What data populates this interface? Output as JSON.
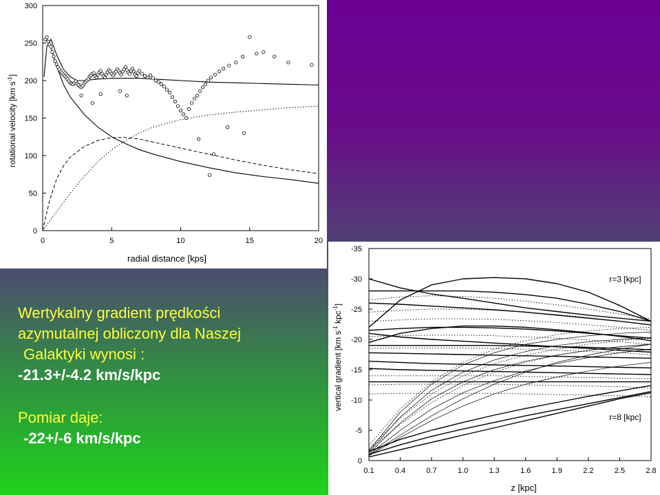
{
  "colors": {
    "background_top": "#6a0094",
    "background_bottom": "#1fd21a",
    "heading_text": "#ffff3a",
    "body_text": "#ffffff"
  },
  "text": {
    "line1": "Wertykalny gradient prędkości",
    "line2": "azymutalnej obliczony dla Naszej",
    "line3": "Galaktyki wynosi :",
    "line4": "-21.3+/-4.2  km/s/kpc",
    "line5": "Pomiar daje:",
    "line6": "-22+/-6  km/s/kpc"
  },
  "chart_data": [
    {
      "type": "scatter",
      "xlabel": "radial distance [kps]",
      "ylabel": "rotational velocity  [km s",
      "ylabel_sup": "-1",
      "ylabel_close": "]",
      "xlim": [
        0,
        20
      ],
      "ylim": [
        0,
        300
      ],
      "xticks": [
        0,
        5,
        10,
        15,
        20
      ],
      "yticks": [
        0,
        50,
        100,
        150,
        200,
        250,
        300
      ],
      "observations": [
        [
          0.2,
          255
        ],
        [
          0.3,
          258
        ],
        [
          0.4,
          252
        ],
        [
          0.5,
          248
        ],
        [
          0.6,
          245
        ],
        [
          0.7,
          238
        ],
        [
          0.8,
          232
        ],
        [
          0.9,
          226
        ],
        [
          1.0,
          222
        ],
        [
          1.1,
          218
        ],
        [
          1.2,
          215
        ],
        [
          1.3,
          212
        ],
        [
          1.4,
          210
        ],
        [
          1.5,
          208
        ],
        [
          1.6,
          206
        ],
        [
          1.7,
          204
        ],
        [
          1.8,
          202
        ],
        [
          1.9,
          199
        ],
        [
          2.0,
          197
        ],
        [
          2.1,
          196
        ],
        [
          2.2,
          195
        ],
        [
          2.3,
          197
        ],
        [
          2.4,
          199
        ],
        [
          2.5,
          196
        ],
        [
          2.6,
          194
        ],
        [
          2.7,
          192
        ],
        [
          2.8,
          191
        ],
        [
          2.9,
          193
        ],
        [
          3.0,
          196
        ],
        [
          3.1,
          198
        ],
        [
          3.2,
          200
        ],
        [
          3.3,
          202
        ],
        [
          3.4,
          205
        ],
        [
          3.5,
          207
        ],
        [
          3.6,
          209
        ],
        [
          3.7,
          210
        ],
        [
          3.8,
          206
        ],
        [
          3.9,
          204
        ],
        [
          4.0,
          208
        ],
        [
          4.1,
          211
        ],
        [
          4.2,
          213
        ],
        [
          4.3,
          209
        ],
        [
          4.4,
          206
        ],
        [
          4.5,
          204
        ],
        [
          4.6,
          208
        ],
        [
          4.7,
          211
        ],
        [
          4.8,
          214
        ],
        [
          4.9,
          212
        ],
        [
          5.0,
          209
        ],
        [
          5.1,
          207
        ],
        [
          5.2,
          210
        ],
        [
          5.3,
          212
        ],
        [
          5.4,
          215
        ],
        [
          5.5,
          213
        ],
        [
          5.6,
          210
        ],
        [
          5.7,
          208
        ],
        [
          5.8,
          212
        ],
        [
          5.9,
          215
        ],
        [
          6.0,
          218
        ],
        [
          6.1,
          214
        ],
        [
          6.2,
          211
        ],
        [
          6.3,
          209
        ],
        [
          6.4,
          213
        ],
        [
          6.5,
          216
        ],
        [
          6.6,
          212
        ],
        [
          6.7,
          208
        ],
        [
          6.8,
          206
        ],
        [
          6.9,
          210
        ],
        [
          7.0,
          213
        ],
        [
          7.2,
          209
        ],
        [
          7.4,
          206
        ],
        [
          7.6,
          204
        ],
        [
          7.8,
          207
        ],
        [
          8.0,
          203
        ],
        [
          8.2,
          200
        ],
        [
          8.4,
          198
        ],
        [
          8.6,
          195
        ],
        [
          8.8,
          192
        ],
        [
          9.0,
          188
        ],
        [
          9.2,
          184
        ],
        [
          9.4,
          178
        ],
        [
          9.6,
          172
        ],
        [
          9.8,
          166
        ],
        [
          10.0,
          160
        ],
        [
          10.2,
          155
        ],
        [
          10.4,
          150
        ],
        [
          10.6,
          162
        ],
        [
          10.8,
          170
        ],
        [
          11.0,
          176
        ],
        [
          11.2,
          180
        ],
        [
          11.4,
          186
        ],
        [
          11.6,
          191
        ],
        [
          11.8,
          195
        ],
        [
          12.0,
          200
        ],
        [
          12.2,
          204
        ],
        [
          12.5,
          208
        ],
        [
          12.8,
          212
        ],
        [
          13.1,
          216
        ],
        [
          13.5,
          220
        ],
        [
          14.0,
          224
        ],
        [
          14.5,
          232
        ],
        [
          15.0,
          258
        ],
        [
          15.5,
          236
        ],
        [
          16.0,
          238
        ],
        [
          16.8,
          232
        ],
        [
          17.8,
          224
        ],
        [
          19.5,
          221
        ],
        [
          12.4,
          102
        ],
        [
          12.1,
          74
        ],
        [
          11.3,
          122
        ],
        [
          14.6,
          130
        ],
        [
          13.4,
          138
        ],
        [
          6.1,
          180
        ],
        [
          5.6,
          186
        ],
        [
          3.6,
          170
        ],
        [
          2.8,
          180
        ],
        [
          4.2,
          182
        ]
      ],
      "series": [
        {
          "name": "",
          "style": "solid",
          "x": [
            0.1,
            0.3,
            0.6,
            1.0,
            1.5,
            2.0,
            2.5,
            3.0,
            4.0,
            5.0,
            6.0,
            7.0,
            8.0,
            10.0,
            12.0,
            14.0,
            16.0,
            18.0,
            20.0
          ],
          "values": [
            205,
            245,
            255,
            235,
            215,
            205,
            200,
            200,
            202,
            203,
            203,
            203,
            202,
            200,
            198,
            197,
            196,
            195,
            194
          ]
        },
        {
          "name": "",
          "style": "solid",
          "x": [
            0.3,
            0.5,
            0.8,
            1.0,
            1.5,
            2.0,
            3.0,
            4.0,
            5.0,
            6.0,
            7.0,
            8.0,
            10.0,
            12.0,
            14.0,
            16.0,
            18.0,
            20.0
          ],
          "values": [
            255,
            250,
            232,
            220,
            195,
            178,
            155,
            138,
            125,
            116,
            108,
            102,
            92,
            84,
            77,
            72,
            68,
            63
          ]
        },
        {
          "name": "",
          "style": "dashed",
          "x": [
            0,
            0.5,
            1.0,
            1.5,
            2.0,
            3.0,
            4.0,
            5.0,
            6.0,
            7.0,
            8.0,
            10.0,
            12.0,
            14.0,
            16.0,
            18.0,
            20.0
          ],
          "values": [
            0,
            40,
            68,
            86,
            98,
            112,
            120,
            124,
            124,
            122,
            118,
            110,
            102,
            94,
            87,
            81,
            76
          ]
        },
        {
          "name": "",
          "style": "dotted",
          "x": [
            0,
            1.0,
            2.0,
            3.0,
            4.0,
            5.0,
            6.0,
            7.0,
            8.0,
            10.0,
            12.0,
            14.0,
            16.0,
            18.0,
            20.0
          ],
          "values": [
            0,
            25,
            50,
            72,
            92,
            108,
            120,
            130,
            138,
            148,
            154,
            158,
            161,
            164,
            166
          ]
        }
      ]
    },
    {
      "type": "line",
      "xlabel": "z [kpc]",
      "ylabel": "vertical gradient [km s",
      "ylabel_sup": "-1",
      "ylabel_mid": " kpc",
      "ylabel_sup2": "-1",
      "ylabel_close": "]",
      "xlim": [
        0.1,
        2.8
      ],
      "ylim": [
        0,
        -35
      ],
      "xticks": [
        0.1,
        0.4,
        0.7,
        1.0,
        1.3,
        1.6,
        1.9,
        2.2,
        2.5,
        2.8
      ],
      "yticks": [
        0,
        -5,
        -10,
        -15,
        -20,
        -25,
        -30,
        -35
      ],
      "annotations": [
        {
          "text": "r=3 [kpc]",
          "x": 2.4,
          "y": -29.5
        },
        {
          "text": "r=8 [kpc]",
          "x": 2.4,
          "y": -6.7
        }
      ],
      "series": [
        {
          "name": "",
          "style": "solid",
          "values": [
            -30.0,
            -28.5,
            -27.5,
            -26.8,
            -26.0,
            -25.2,
            -24.6,
            -24.0,
            -23.5,
            -23.0
          ]
        },
        {
          "name": "",
          "style": "solid",
          "values": [
            -28.0,
            -28.0,
            -28.0,
            -28.0,
            -27.8,
            -27.4,
            -26.8,
            -25.8,
            -24.6,
            -23.0
          ]
        },
        {
          "name": "",
          "style": "solid",
          "values": [
            -22.0,
            -26.5,
            -29.0,
            -30.0,
            -30.2,
            -30.0,
            -29.2,
            -27.8,
            -25.6,
            -23.0
          ]
        },
        {
          "name": "",
          "style": "solid",
          "values": [
            -26.0,
            -25.8,
            -25.5,
            -25.2,
            -24.9,
            -24.5,
            -24.0,
            -23.5,
            -23.0,
            -22.4
          ]
        },
        {
          "name": "",
          "style": "solid",
          "values": [
            -21.5,
            -21.8,
            -22.0,
            -22.0,
            -21.9,
            -21.7,
            -21.4,
            -21.0,
            -20.6,
            -20.2
          ]
        },
        {
          "name": "",
          "style": "solid",
          "values": [
            -19.5,
            -21.0,
            -21.8,
            -22.2,
            -22.2,
            -22.0,
            -21.6,
            -21.1,
            -20.5,
            -19.8
          ]
        },
        {
          "name": "",
          "style": "solid",
          "values": [
            -21.0,
            -20.4,
            -20.0,
            -19.7,
            -19.4,
            -19.1,
            -18.8,
            -18.5,
            -18.2,
            -17.9
          ]
        },
        {
          "name": "",
          "style": "solid",
          "values": [
            -19.0,
            -19.0,
            -19.0,
            -19.0,
            -19.0,
            -18.9,
            -18.8,
            -18.7,
            -18.5,
            -18.3
          ]
        },
        {
          "name": "",
          "style": "solid",
          "values": [
            -17.8,
            -17.7,
            -17.6,
            -17.5,
            -17.4,
            -17.3,
            -17.2,
            -17.1,
            -17.0,
            -16.9
          ]
        },
        {
          "name": "",
          "style": "solid",
          "values": [
            -16.4,
            -16.2,
            -16.0,
            -15.9,
            -15.8,
            -15.7,
            -15.6,
            -15.5,
            -15.4,
            -15.3
          ]
        },
        {
          "name": "",
          "style": "solid",
          "values": [
            -15.2,
            -15.0,
            -14.9,
            -14.8,
            -14.7,
            -14.6,
            -14.5,
            -14.4,
            -14.3,
            -14.2
          ]
        },
        {
          "name": "",
          "style": "solid",
          "values": [
            -13.0,
            -13.0,
            -13.0,
            -13.0,
            -13.0,
            -13.0,
            -13.0,
            -13.0,
            -13.0,
            -13.0
          ]
        },
        {
          "name": "",
          "style": "solid",
          "values": [
            -1.5,
            -3.5,
            -5.0,
            -6.3,
            -7.5,
            -8.6,
            -9.6,
            -10.6,
            -11.5,
            -12.4
          ]
        },
        {
          "name": "",
          "style": "solid",
          "values": [
            -1.0,
            -2.6,
            -4.0,
            -5.2,
            -6.3,
            -7.4,
            -8.4,
            -9.4,
            -10.4,
            -11.4
          ]
        },
        {
          "name": "",
          "style": "solid",
          "values": [
            -0.6,
            -1.8,
            -3.0,
            -4.2,
            -5.4,
            -6.6,
            -7.8,
            -9.0,
            -10.2,
            -11.2
          ]
        },
        {
          "name": "",
          "style": "thin",
          "values": [
            -1.0,
            -5.0,
            -8.5,
            -11.2,
            -13.2,
            -14.8,
            -16.0,
            -17.0,
            -17.8,
            -18.4
          ]
        },
        {
          "name": "",
          "style": "thin",
          "values": [
            -1.2,
            -6.2,
            -10.2,
            -13.0,
            -15.0,
            -16.4,
            -17.4,
            -18.2,
            -18.8,
            -19.2
          ]
        },
        {
          "name": "",
          "style": "thin",
          "values": [
            -1.4,
            -7.2,
            -11.6,
            -14.6,
            -16.6,
            -18.0,
            -19.0,
            -19.6,
            -20.0,
            -20.3
          ]
        },
        {
          "name": "",
          "style": "thin",
          "values": [
            -0.8,
            -3.8,
            -6.6,
            -9.0,
            -11.0,
            -12.6,
            -13.8,
            -14.8,
            -15.6,
            -16.2
          ]
        },
        {
          "name": "",
          "style": "thin",
          "values": [
            -0.9,
            -4.2,
            -7.4,
            -10.2,
            -12.6,
            -14.6,
            -16.2,
            -17.4,
            -18.4,
            -19.2
          ]
        },
        {
          "name": "",
          "style": "thin",
          "values": [
            -1.6,
            -8.0,
            -12.6,
            -15.8,
            -17.8,
            -19.2,
            -20.0,
            -20.6,
            -21.0,
            -21.2
          ]
        },
        {
          "name": "",
          "style": "dotted",
          "values": [
            -26.5,
            -27.0,
            -27.2,
            -27.1,
            -26.8,
            -26.3,
            -25.7,
            -25.0,
            -24.2,
            -23.4
          ]
        },
        {
          "name": "",
          "style": "dotted",
          "values": [
            -24.5,
            -24.8,
            -25.0,
            -25.0,
            -24.8,
            -24.5,
            -24.1,
            -23.6,
            -23.0,
            -22.4
          ]
        },
        {
          "name": "",
          "style": "dotted",
          "values": [
            -23.0,
            -23.2,
            -23.4,
            -23.4,
            -23.3,
            -23.1,
            -22.8,
            -22.4,
            -22.0,
            -21.5
          ]
        },
        {
          "name": "",
          "style": "dotted",
          "values": [
            -20.5,
            -20.6,
            -20.7,
            -20.7,
            -20.6,
            -20.4,
            -20.2,
            -19.9,
            -19.6,
            -19.2
          ]
        },
        {
          "name": "",
          "style": "dotted",
          "values": [
            -18.5,
            -18.6,
            -18.6,
            -18.6,
            -18.5,
            -18.4,
            -18.2,
            -18.0,
            -17.8,
            -17.5
          ]
        },
        {
          "name": "",
          "style": "dotted",
          "values": [
            -14.0,
            -14.0,
            -14.0,
            -14.0,
            -14.0,
            -13.9,
            -13.8,
            -13.7,
            -13.6,
            -13.5
          ]
        },
        {
          "name": "",
          "style": "dotted",
          "values": [
            -12.5,
            -12.6,
            -12.6,
            -12.6,
            -12.6,
            -12.5,
            -12.4,
            -12.3,
            -12.2,
            -12.0
          ]
        },
        {
          "name": "",
          "style": "dotted",
          "values": [
            -11.0,
            -11.1,
            -11.1,
            -11.1,
            -11.1,
            -11.0,
            -10.9,
            -10.8,
            -10.7,
            -10.5
          ]
        },
        {
          "name": "",
          "style": "dotted",
          "values": [
            -2.0,
            -7.0,
            -11.0,
            -14.0,
            -16.0,
            -17.4,
            -18.4,
            -19.2,
            -19.8,
            -20.2
          ]
        },
        {
          "name": "",
          "style": "dotted",
          "values": [
            -2.5,
            -8.5,
            -13.0,
            -16.2,
            -18.4,
            -19.8,
            -20.8,
            -21.4,
            -21.8,
            -22.0
          ]
        },
        {
          "name": "",
          "style": "dotted",
          "values": [
            -1.8,
            -6.0,
            -9.6,
            -12.4,
            -14.6,
            -16.2,
            -17.4,
            -18.2,
            -18.8,
            -19.2
          ]
        }
      ]
    }
  ]
}
